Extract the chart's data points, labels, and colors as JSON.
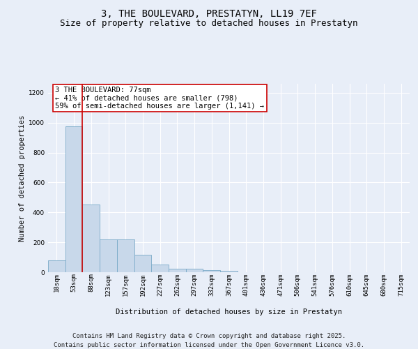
{
  "title_line1": "3, THE BOULEVARD, PRESTATYN, LL19 7EF",
  "title_line2": "Size of property relative to detached houses in Prestatyn",
  "xlabel": "Distribution of detached houses by size in Prestatyn",
  "ylabel": "Number of detached properties",
  "bin_labels": [
    "18sqm",
    "53sqm",
    "88sqm",
    "123sqm",
    "157sqm",
    "192sqm",
    "227sqm",
    "262sqm",
    "297sqm",
    "332sqm",
    "367sqm",
    "401sqm",
    "436sqm",
    "471sqm",
    "506sqm",
    "541sqm",
    "576sqm",
    "610sqm",
    "645sqm",
    "680sqm",
    "715sqm"
  ],
  "bar_values": [
    80,
    975,
    455,
    220,
    220,
    115,
    50,
    22,
    22,
    15,
    8,
    0,
    0,
    0,
    0,
    0,
    0,
    0,
    0,
    0,
    0
  ],
  "bar_color": "#c8d8ea",
  "bar_edge_color": "#7aaac8",
  "vline_x": 1.5,
  "vline_color": "#cc0000",
  "annotation_text": "3 THE BOULEVARD: 77sqm\n← 41% of detached houses are smaller (798)\n59% of semi-detached houses are larger (1,141) →",
  "annotation_box_color": "#ffffff",
  "annotation_box_edge": "#cc0000",
  "ylim": [
    0,
    1260
  ],
  "yticks": [
    0,
    200,
    400,
    600,
    800,
    1000,
    1200
  ],
  "bg_color": "#e8eef8",
  "plot_bg_color": "#e8eef8",
  "grid_color": "#ffffff",
  "footer_line1": "Contains HM Land Registry data © Crown copyright and database right 2025.",
  "footer_line2": "Contains public sector information licensed under the Open Government Licence v3.0.",
  "title_fontsize": 10,
  "subtitle_fontsize": 9,
  "axis_label_fontsize": 7.5,
  "tick_fontsize": 6.5,
  "annotation_fontsize": 7.5,
  "footer_fontsize": 6.5
}
